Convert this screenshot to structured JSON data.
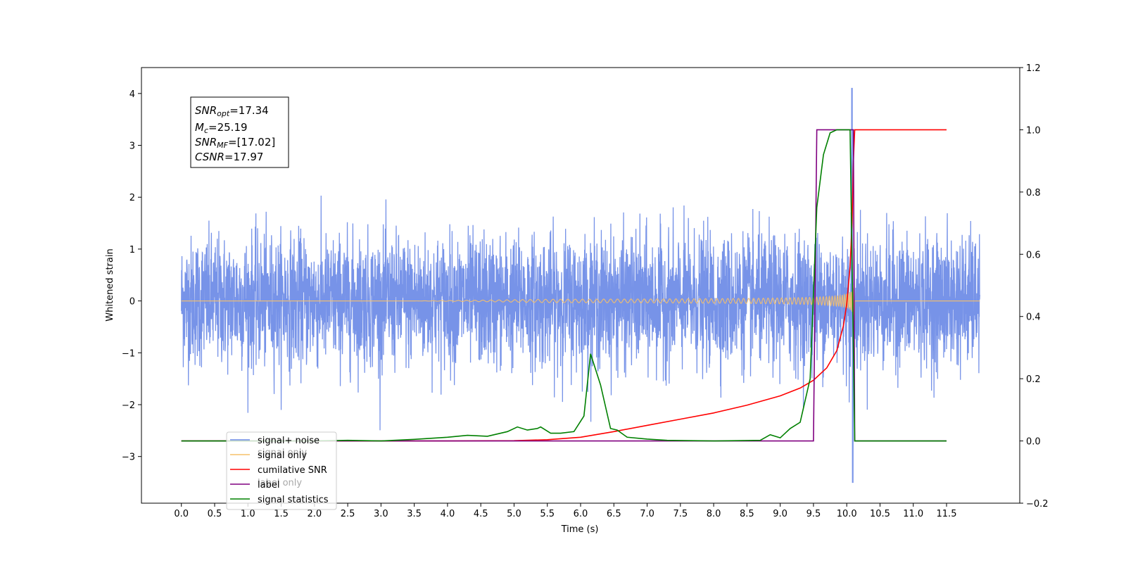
{
  "chart_data": {
    "type": "line",
    "xlabel": "Time (s)",
    "ylabel": "Whitened strain",
    "title": "",
    "xlim": [
      -0.6,
      12.6
    ],
    "ylim": [
      -3.9,
      4.5
    ],
    "y2lim": [
      -0.2,
      1.2
    ],
    "x_ticks": [
      "0.0",
      "0.5",
      "1.0",
      "1.5",
      "2.0",
      "2.5",
      "3.0",
      "3.5",
      "4.0",
      "4.5",
      "5.0",
      "5.5",
      "6.0",
      "6.5",
      "7.0",
      "7.5",
      "8.0",
      "8.5",
      "9.0",
      "9.5",
      "10.0",
      "10.5",
      "11.0",
      "11.5"
    ],
    "y_ticks": [
      "4",
      "3",
      "2",
      "1",
      "0",
      "−1",
      "−2",
      "−3"
    ],
    "y_tick_values": [
      4,
      3,
      2,
      1,
      0,
      -1,
      -2,
      -3
    ],
    "y2_ticks": [
      "1.2",
      "1.0",
      "0.8",
      "0.6",
      "0.4",
      "0.2",
      "0.0",
      "−0.2"
    ],
    "y2_tick_values": [
      1.2,
      1.0,
      0.8,
      0.6,
      0.4,
      0.2,
      0.0,
      -0.2
    ],
    "colors": {
      "noise": "#6b8ae6",
      "signal": "#f5c06a",
      "csnr": "#ff0000",
      "label": "#800080",
      "stats": "#008000"
    },
    "annotation": {
      "snr_opt": "17.34",
      "mc": "25.19",
      "snr_mf": "[17.02]",
      "csnr": "17.97"
    },
    "legend": {
      "position": "lower-left",
      "entries": [
        "signal+ noise",
        "signal only",
        "cumilative SNR",
        "label",
        "signal statistics"
      ],
      "hidden_entries": [
        "signal only",
        "label only"
      ]
    },
    "series": [
      {
        "name": "cumilative SNR",
        "axis": "right",
        "x": [
          0.0,
          1.0,
          2.0,
          3.0,
          4.0,
          5.0,
          5.5,
          6.0,
          6.5,
          7.0,
          7.5,
          8.0,
          8.5,
          9.0,
          9.3,
          9.5,
          9.7,
          9.85,
          9.95,
          10.0,
          10.05,
          10.08,
          10.1,
          10.12,
          11.5
        ],
        "y": [
          0.0,
          0.0,
          0.0,
          0.0,
          0.0,
          0.001,
          0.004,
          0.012,
          0.03,
          0.05,
          0.07,
          0.09,
          0.115,
          0.145,
          0.17,
          0.195,
          0.235,
          0.29,
          0.37,
          0.44,
          0.56,
          0.7,
          0.9,
          1.0,
          1.0
        ]
      },
      {
        "name": "label",
        "axis": "right",
        "x": [
          0.0,
          9.5,
          9.55,
          10.1,
          10.12,
          11.5
        ],
        "y": [
          0.0,
          0.0,
          1.0,
          1.0,
          0.0,
          0.0
        ]
      },
      {
        "name": "signal statistics",
        "axis": "right",
        "x": [
          0.0,
          2.0,
          2.5,
          3.0,
          3.5,
          4.0,
          4.3,
          4.6,
          4.9,
          5.05,
          5.2,
          5.35,
          5.4,
          5.55,
          5.7,
          5.9,
          6.05,
          6.15,
          6.3,
          6.45,
          6.55,
          6.7,
          7.0,
          7.3,
          8.0,
          8.7,
          8.85,
          9.0,
          9.15,
          9.3,
          9.45,
          9.55,
          9.65,
          9.75,
          9.85,
          10.05,
          10.1,
          10.12,
          11.5
        ],
        "y": [
          0.0,
          0.0,
          0.002,
          0.0,
          0.005,
          0.012,
          0.018,
          0.015,
          0.03,
          0.045,
          0.035,
          0.04,
          0.045,
          0.025,
          0.025,
          0.03,
          0.08,
          0.28,
          0.18,
          0.04,
          0.035,
          0.012,
          0.006,
          0.002,
          0.0,
          0.002,
          0.02,
          0.01,
          0.04,
          0.06,
          0.2,
          0.75,
          0.92,
          0.99,
          1.0,
          1.0,
          0.3,
          0.0,
          0.0
        ]
      }
    ]
  }
}
